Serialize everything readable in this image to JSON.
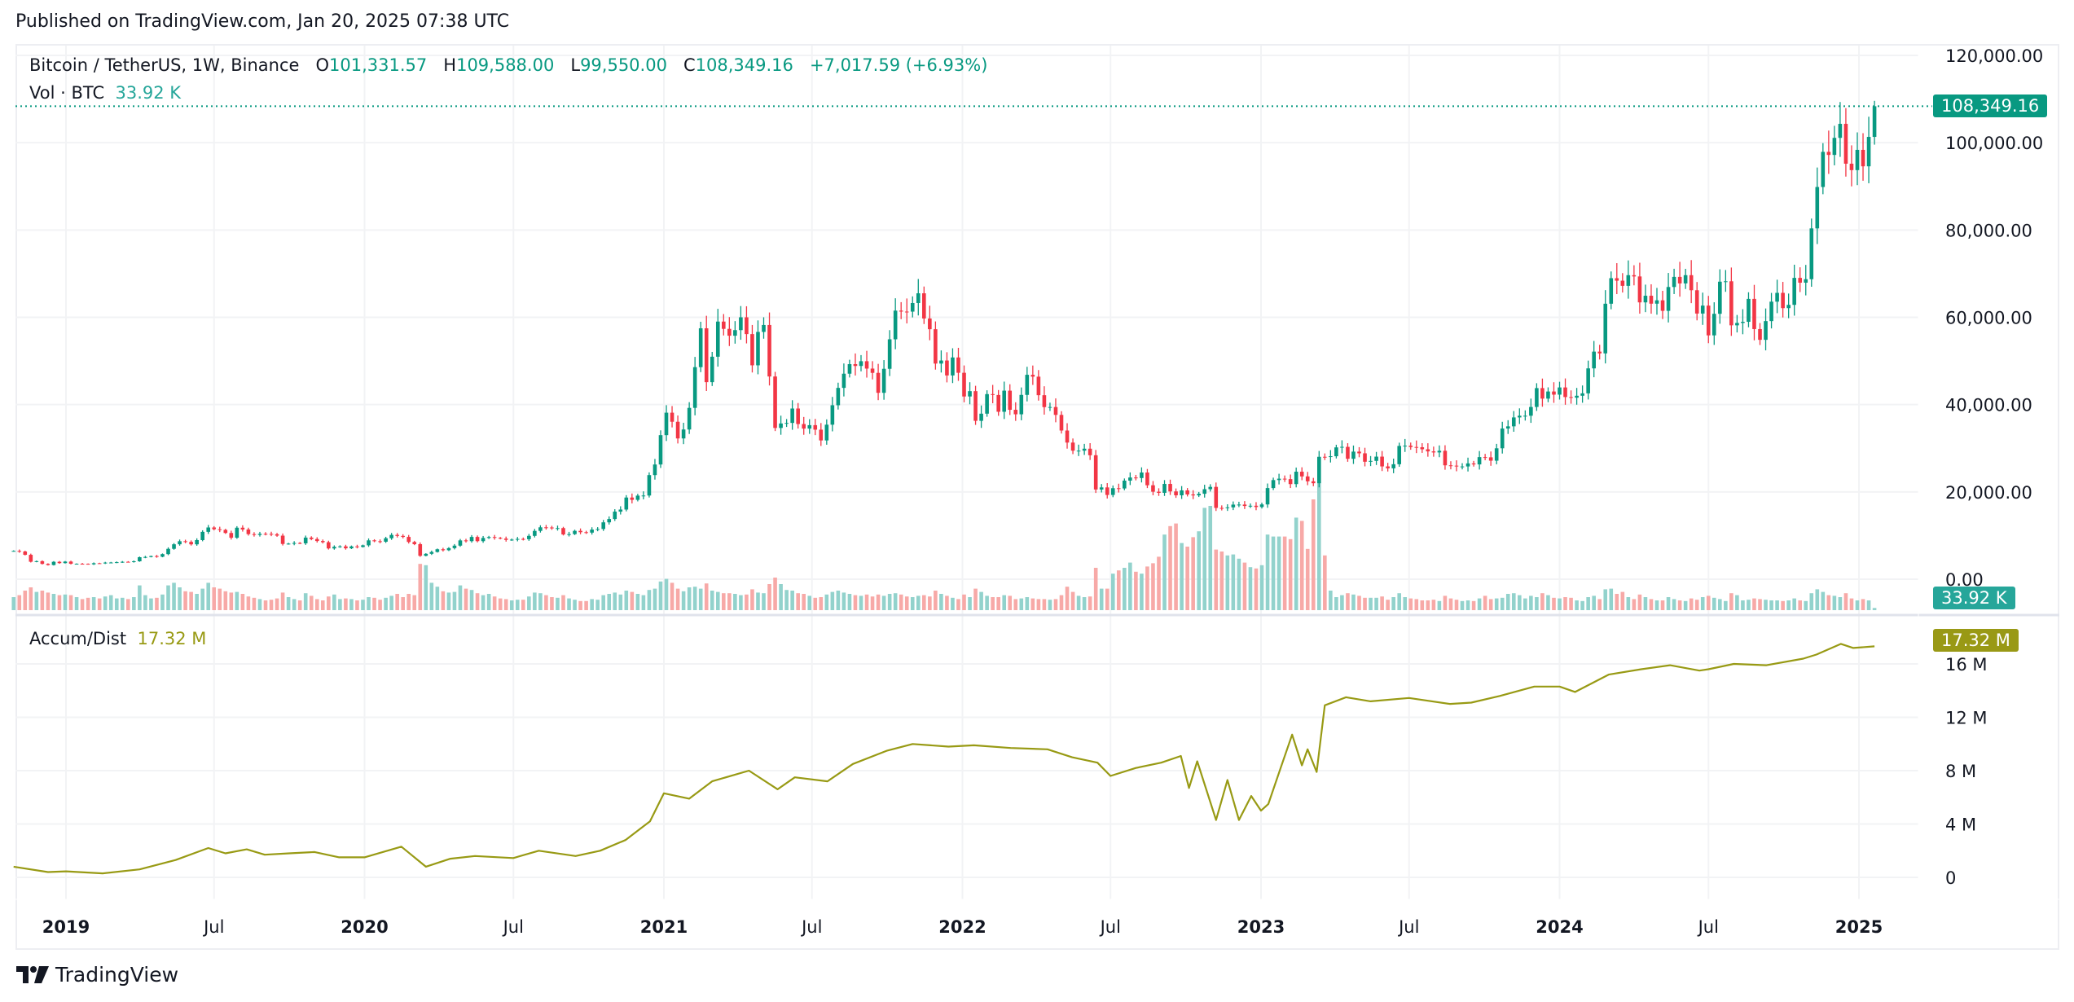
{
  "published": "Published on TradingView.com, Jan 20, 2025 07:38 UTC",
  "legend": {
    "symbol": "Bitcoin / TetherUS, 1W, Binance",
    "o_label": "O",
    "o_value": "101,331.57",
    "h_label": "H",
    "h_value": "109,588.00",
    "l_label": "L",
    "l_value": "99,550.00",
    "c_label": "C",
    "c_value": "108,349.16",
    "change": "+7,017.59 (+6.93%)",
    "vol_label": "Vol · BTC",
    "vol_value": "33.92 K",
    "ad_label": "Accum/Dist",
    "ad_value": "17.32 M"
  },
  "tags": {
    "price": "108,349.16",
    "volume": "33.92 K",
    "ad": "17.32 M"
  },
  "colors": {
    "up": "#089981",
    "down": "#F23645",
    "vol_up": "#92D2CC",
    "vol_down": "#F7A9A7",
    "ad_line": "#989A14",
    "price_tag": "#089981",
    "vol_tag": "#26A69A",
    "ad_tag": "#999915"
  },
  "footer": {
    "brand": "TradingView"
  },
  "chart_data": [
    {
      "type": "candlestick",
      "interval": "1W",
      "first_open": 6450,
      "last_bar": {
        "open": 101331.57,
        "high": 109588.0,
        "low": 99550.0,
        "close": 108349.16
      },
      "closes": [
        6480,
        6350,
        5590,
        4000,
        4130,
        3510,
        3250,
        3990,
        3690,
        4040,
        3540,
        3540,
        3530,
        3410,
        3660,
        3640,
        3800,
        3820,
        3900,
        3990,
        3970,
        4100,
        5040,
        5100,
        5300,
        5150,
        5750,
        6960,
        8000,
        8700,
        8550,
        7990,
        8960,
        10850,
        11850,
        11450,
        11300,
        10590,
        9500,
        11800,
        11390,
        10330,
        10150,
        10400,
        10390,
        10300,
        9980,
        8080,
        8150,
        8300,
        8220,
        9530,
        9200,
        8750,
        8480,
        7050,
        7420,
        7520,
        7080,
        7510,
        7390,
        7760,
        8900,
        8700,
        8590,
        9380,
        10150,
        9920,
        9690,
        8530,
        8030,
        5360,
        5820,
        6240,
        6860,
        6640,
        7120,
        7690,
        8890,
        8720,
        9680,
        8720,
        9450,
        9660,
        9480,
        9300,
        9010,
        9070,
        9230,
        9160,
        9930,
        11070,
        11890,
        11850,
        11650,
        11710,
        10250,
        10330,
        11080,
        10770,
        10670,
        11370,
        11500,
        13030,
        13790,
        15480,
        15960,
        18710,
        18180,
        19150,
        19170,
        23850,
        26280,
        33000,
        38150,
        36070,
        32250,
        34300,
        39250,
        48580,
        57480,
        45140,
        50970,
        59020,
        57350,
        55780,
        57060,
        60000,
        56150,
        49000,
        56650,
        58240,
        46440,
        34650,
        35680,
        35800,
        39100,
        35550,
        34500,
        35290,
        34260,
        31790,
        35400,
        39850,
        43830,
        47080,
        49270,
        48850,
        49940,
        48250,
        47270,
        42700,
        48200,
        54960,
        61530,
        61310,
        61300,
        63270,
        65500,
        59730,
        57270,
        49400,
        50100,
        46680,
        50800,
        47290,
        41860,
        43080,
        36280,
        37920,
        42400,
        42200,
        38360,
        43190,
        38810,
        37780,
        42220,
        46830,
        46400,
        42150,
        39430,
        39450,
        37640,
        34060,
        31300,
        29450,
        29450,
        29900,
        28400,
        20550,
        21030,
        19300,
        20850,
        20790,
        22580,
        23300,
        23180,
        24440,
        21520,
        20040,
        19790,
        21830,
        20110,
        19220,
        20350,
        19420,
        19200,
        19570,
        20620,
        21150,
        16330,
        16280,
        16460,
        17090,
        17100,
        16780,
        16830,
        16540,
        17130,
        20880,
        22710,
        23030,
        22930,
        21790,
        24630,
        23550,
        22430,
        21990,
        28040,
        27990,
        28170,
        30200,
        30320,
        27590,
        29230,
        28840,
        26910,
        27100,
        28080,
        25840,
        25400,
        26340,
        30530,
        30590,
        30290,
        30230,
        29770,
        29280,
        29040,
        29420,
        26090,
        26010,
        25830,
        25830,
        26530,
        26300,
        27970,
        27920,
        27150,
        29990,
        34520,
        35020,
        37060,
        37450,
        37450,
        39460,
        43780,
        41370,
        43000,
        42280,
        43930,
        41730,
        41580,
        42030,
        42580,
        48300,
        52140,
        51730,
        63110,
        68960,
        68390,
        67210,
        69650,
        69360,
        63420,
        64940,
        63120,
        63890,
        61480,
        66940,
        69260,
        67760,
        69650,
        66200,
        60860,
        62680,
        55860,
        60800,
        68160,
        68250,
        58160,
        58710,
        58970,
        64220,
        57300,
        54840,
        59130,
        63580,
        65600,
        62100,
        62850,
        69030,
        67930,
        68730,
        80370,
        89850,
        97900,
        97200,
        101110,
        104320,
        95190,
        93720,
        98360,
        94590,
        101331.57,
        108349.16
      ],
      "y_ticks": [
        "120,000.00",
        "100,000.00",
        "80,000.00",
        "60,000.00",
        "40,000.00",
        "20,000.00",
        "0.00"
      ],
      "ylim": [
        0,
        120000
      ]
    },
    {
      "type": "bar",
      "name": "Vol · BTC",
      "unit": "K",
      "values": [
        200,
        230,
        300,
        350,
        280,
        300,
        270,
        250,
        230,
        240,
        230,
        200,
        170,
        190,
        200,
        180,
        210,
        230,
        180,
        190,
        170,
        200,
        380,
        230,
        180,
        190,
        240,
        380,
        420,
        350,
        290,
        280,
        250,
        330,
        420,
        350,
        330,
        290,
        270,
        280,
        250,
        210,
        190,
        170,
        150,
        160,
        180,
        270,
        200,
        170,
        150,
        260,
        220,
        170,
        150,
        210,
        240,
        170,
        180,
        170,
        150,
        160,
        200,
        190,
        160,
        190,
        220,
        250,
        200,
        250,
        230,
        710,
        690,
        420,
        360,
        290,
        270,
        280,
        380,
        330,
        310,
        260,
        230,
        250,
        210,
        180,
        170,
        150,
        160,
        160,
        210,
        270,
        260,
        230,
        200,
        190,
        230,
        180,
        160,
        140,
        140,
        170,
        160,
        230,
        250,
        270,
        240,
        300,
        280,
        250,
        230,
        310,
        330,
        440,
        480,
        420,
        330,
        290,
        350,
        360,
        330,
        410,
        300,
        280,
        260,
        260,
        250,
        230,
        240,
        320,
        270,
        260,
        400,
        500,
        400,
        310,
        300,
        260,
        250,
        220,
        190,
        200,
        240,
        280,
        300,
        270,
        250,
        230,
        220,
        240,
        210,
        240,
        220,
        250,
        260,
        240,
        210,
        200,
        220,
        230,
        210,
        300,
        250,
        220,
        190,
        170,
        240,
        200,
        330,
        280,
        220,
        200,
        200,
        230,
        220,
        170,
        180,
        200,
        180,
        170,
        170,
        160,
        170,
        230,
        360,
        280,
        220,
        200,
        210,
        650,
        330,
        330,
        560,
        610,
        650,
        730,
        590,
        560,
        670,
        720,
        820,
        1160,
        1290,
        1330,
        1030,
        975,
        1120,
        1210,
        1570,
        1600,
        930,
        900,
        840,
        855,
        790,
        730,
        660,
        640,
        690,
        1160,
        1130,
        1130,
        1130,
        1090,
        1420,
        1370,
        940,
        1700,
        1970,
        840,
        300,
        200,
        230,
        260,
        240,
        220,
        190,
        190,
        190,
        210,
        160,
        200,
        260,
        200,
        180,
        170,
        150,
        150,
        160,
        140,
        220,
        180,
        160,
        140,
        150,
        140,
        180,
        220,
        170,
        180,
        190,
        250,
        260,
        230,
        180,
        220,
        200,
        260,
        230,
        190,
        180,
        200,
        190,
        150,
        140,
        200,
        220,
        170,
        320,
        330,
        250,
        280,
        200,
        170,
        240,
        200,
        170,
        150,
        150,
        200,
        170,
        150,
        140,
        180,
        160,
        200,
        220,
        190,
        170,
        140,
        260,
        230,
        150,
        160,
        180,
        170,
        160,
        150,
        150,
        140,
        150,
        180,
        150,
        140,
        260,
        320,
        280,
        230,
        220,
        200,
        260,
        180,
        150,
        170,
        150,
        33.92
      ]
    },
    {
      "type": "line",
      "name": "Accum/Dist",
      "unit": "M",
      "points": [
        [
          "2018-10-29",
          0.8
        ],
        [
          "2018-12-10",
          0.4
        ],
        [
          "2019-01-01",
          0.45
        ],
        [
          "2019-02-15",
          0.3
        ],
        [
          "2019-04-01",
          0.6
        ],
        [
          "2019-05-15",
          1.3
        ],
        [
          "2019-06-24",
          2.2
        ],
        [
          "2019-07-15",
          1.8
        ],
        [
          "2019-08-10",
          2.1
        ],
        [
          "2019-09-01",
          1.7
        ],
        [
          "2019-10-01",
          1.8
        ],
        [
          "2019-11-01",
          1.9
        ],
        [
          "2019-12-01",
          1.5
        ],
        [
          "2020-01-01",
          1.5
        ],
        [
          "2020-02-15",
          2.3
        ],
        [
          "2020-03-16",
          0.8
        ],
        [
          "2020-04-15",
          1.4
        ],
        [
          "2020-05-15",
          1.6
        ],
        [
          "2020-07-01",
          1.45
        ],
        [
          "2020-08-01",
          2.0
        ],
        [
          "2020-09-15",
          1.6
        ],
        [
          "2020-10-15",
          2.0
        ],
        [
          "2020-11-15",
          2.8
        ],
        [
          "2020-12-15",
          4.2
        ],
        [
          "2021-01-01",
          6.3
        ],
        [
          "2021-02-01",
          5.9
        ],
        [
          "2021-03-01",
          7.2
        ],
        [
          "2021-04-15",
          8.0
        ],
        [
          "2021-05-20",
          6.6
        ],
        [
          "2021-06-10",
          7.5
        ],
        [
          "2021-07-20",
          7.2
        ],
        [
          "2021-08-20",
          8.5
        ],
        [
          "2021-10-01",
          9.5
        ],
        [
          "2021-11-01",
          10.0
        ],
        [
          "2021-12-15",
          9.8
        ],
        [
          "2022-01-15",
          9.9
        ],
        [
          "2022-03-01",
          9.7
        ],
        [
          "2022-04-15",
          9.6
        ],
        [
          "2022-05-15",
          9.0
        ],
        [
          "2022-06-15",
          8.6
        ],
        [
          "2022-07-01",
          7.6
        ],
        [
          "2022-08-01",
          8.2
        ],
        [
          "2022-09-01",
          8.6
        ],
        [
          "2022-09-25",
          9.1
        ],
        [
          "2022-10-05",
          6.7
        ],
        [
          "2022-10-15",
          8.7
        ],
        [
          "2022-11-07",
          4.3
        ],
        [
          "2022-11-21",
          7.3
        ],
        [
          "2022-12-05",
          4.3
        ],
        [
          "2022-12-20",
          6.1
        ],
        [
          "2023-01-01",
          5.0
        ],
        [
          "2023-01-10",
          5.5
        ],
        [
          "2023-01-25",
          8.2
        ],
        [
          "2023-02-08",
          10.7
        ],
        [
          "2023-02-20",
          8.4
        ],
        [
          "2023-02-27",
          9.6
        ],
        [
          "2023-03-10",
          7.9
        ],
        [
          "2023-03-20",
          12.9
        ],
        [
          "2023-04-15",
          13.5
        ],
        [
          "2023-05-15",
          13.2
        ],
        [
          "2023-07-01",
          13.45
        ],
        [
          "2023-08-20",
          13.0
        ],
        [
          "2023-09-15",
          13.1
        ],
        [
          "2023-10-20",
          13.6
        ],
        [
          "2023-12-01",
          14.3
        ],
        [
          "2024-01-01",
          14.3
        ],
        [
          "2024-01-20",
          13.9
        ],
        [
          "2024-03-01",
          15.2
        ],
        [
          "2024-04-10",
          15.6
        ],
        [
          "2024-05-15",
          15.9
        ],
        [
          "2024-06-20",
          15.5
        ],
        [
          "2024-07-01",
          15.6
        ],
        [
          "2024-08-01",
          16.0
        ],
        [
          "2024-09-10",
          15.9
        ],
        [
          "2024-10-25",
          16.4
        ],
        [
          "2024-11-10",
          16.7
        ],
        [
          "2024-12-10",
          17.5
        ],
        [
          "2024-12-25",
          17.2
        ],
        [
          "2025-01-20",
          17.32
        ]
      ],
      "y_ticks": [
        "16 M",
        "12 M",
        "8 M",
        "4 M",
        "0"
      ]
    }
  ],
  "x_ticks": [
    {
      "label": "2019",
      "date": "2019-01-01",
      "bold": true
    },
    {
      "label": "Jul",
      "date": "2019-07-01"
    },
    {
      "label": "2020",
      "date": "2020-01-01",
      "bold": true
    },
    {
      "label": "Jul",
      "date": "2020-07-01"
    },
    {
      "label": "2021",
      "date": "2021-01-01",
      "bold": true
    },
    {
      "label": "Jul",
      "date": "2021-07-01"
    },
    {
      "label": "2022",
      "date": "2022-01-01",
      "bold": true
    },
    {
      "label": "Jul",
      "date": "2022-07-01"
    },
    {
      "label": "2023",
      "date": "2023-01-01",
      "bold": true
    },
    {
      "label": "Jul",
      "date": "2023-07-01"
    },
    {
      "label": "2024",
      "date": "2024-01-01",
      "bold": true
    },
    {
      "label": "Jul",
      "date": "2024-07-01"
    },
    {
      "label": "2025",
      "date": "2025-01-01",
      "bold": true
    }
  ]
}
